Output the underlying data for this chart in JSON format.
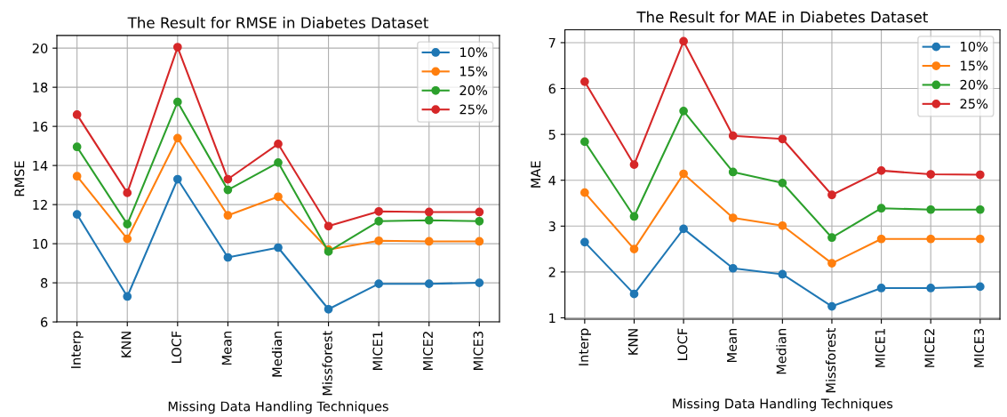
{
  "chart_data": [
    {
      "type": "line",
      "title": "The Result for RMSE in Diabetes Dataset",
      "xlabel": "Missing Data Handling Techniques",
      "ylabel": "RMSE",
      "categories": [
        "Interp",
        "KNN",
        "LOCF",
        "Mean",
        "Median",
        "Missforest",
        "MICE1",
        "MICE2",
        "MICE3"
      ],
      "ylim": [
        6,
        20.65
      ],
      "yticks": [
        6,
        8,
        10,
        12,
        14,
        16,
        18,
        20
      ],
      "grid": true,
      "legend": "top right",
      "marker": "circle",
      "line_style": "solid",
      "series": [
        {
          "name": "10%",
          "color": "#1f77b4",
          "values": [
            11.5,
            7.3,
            13.3,
            9.3,
            9.8,
            6.65,
            7.95,
            7.95,
            8.0
          ]
        },
        {
          "name": "15%",
          "color": "#ff7f0e",
          "values": [
            13.45,
            10.25,
            15.4,
            11.45,
            12.4,
            9.7,
            10.15,
            10.12,
            10.12
          ]
        },
        {
          "name": "20%",
          "color": "#2ca02c",
          "values": [
            14.95,
            11.0,
            17.25,
            12.75,
            14.15,
            9.6,
            11.15,
            11.2,
            11.15
          ]
        },
        {
          "name": "25%",
          "color": "#d62728",
          "values": [
            16.6,
            12.6,
            20.05,
            13.3,
            15.1,
            10.9,
            11.65,
            11.62,
            11.62
          ]
        }
      ]
    },
    {
      "type": "line",
      "title": "The Result for MAE in Diabetes Dataset",
      "xlabel": "Missing Data Handling Techniques",
      "ylabel": "MAE",
      "categories": [
        "Interp",
        "KNN",
        "LOCF",
        "Mean",
        "Median",
        "Missforest",
        "MICE1",
        "MICE2",
        "MICE3"
      ],
      "ylim": [
        0.97,
        7.28
      ],
      "yticks": [
        1,
        2,
        3,
        4,
        5,
        6,
        7
      ],
      "grid": true,
      "legend": "top right",
      "marker": "circle",
      "line_style": "solid",
      "series": [
        {
          "name": "10%",
          "color": "#1f77b4",
          "values": [
            2.65,
            1.52,
            2.94,
            2.08,
            1.95,
            1.25,
            1.65,
            1.65,
            1.68
          ]
        },
        {
          "name": "15%",
          "color": "#ff7f0e",
          "values": [
            3.73,
            2.5,
            4.14,
            3.18,
            3.01,
            2.19,
            2.72,
            2.72,
            2.72
          ]
        },
        {
          "name": "20%",
          "color": "#2ca02c",
          "values": [
            4.84,
            3.21,
            5.51,
            4.18,
            3.94,
            2.75,
            3.39,
            3.36,
            3.36
          ]
        },
        {
          "name": "25%",
          "color": "#d62728",
          "values": [
            6.15,
            4.34,
            7.03,
            4.97,
            4.9,
            3.68,
            4.21,
            4.13,
            4.12
          ]
        }
      ]
    }
  ]
}
